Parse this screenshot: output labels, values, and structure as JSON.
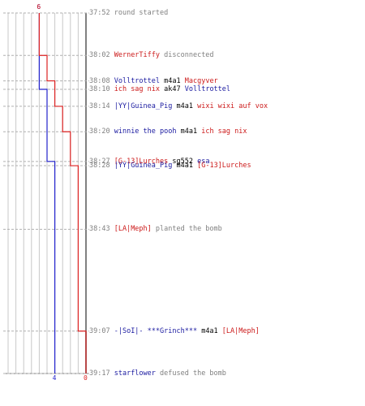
{
  "colors": {
    "blue": "#2222cc",
    "red": "#dd2222",
    "grid": "#c8c8c8",
    "gray": "#808080"
  },
  "counts": {
    "blue_start": "6",
    "red_start": "6",
    "blue_end": "4",
    "red_end": "0"
  },
  "events": [
    {
      "time": "37:52",
      "parts": [
        {
          "text": "round started",
          "color": "gray"
        }
      ]
    },
    {
      "time": "38:02",
      "parts": [
        {
          "text": "WernerTiffy",
          "color": "red"
        },
        {
          "text": " disconnected",
          "color": "gray"
        }
      ]
    },
    {
      "time": "38:08",
      "parts": [
        {
          "text": "Volltrottel",
          "color": "blue"
        },
        {
          "text": " m4a1 ",
          "color": "black"
        },
        {
          "text": "Macgyver",
          "color": "red"
        }
      ]
    },
    {
      "time": "38:10",
      "parts": [
        {
          "text": "ich sag nix",
          "color": "red"
        },
        {
          "text": " ak47 ",
          "color": "black"
        },
        {
          "text": "Volltrottel",
          "color": "blue"
        }
      ]
    },
    {
      "time": "38:14",
      "parts": [
        {
          "text": "|YY|Guinea_Pig",
          "color": "blue"
        },
        {
          "text": " m4a1 ",
          "color": "black"
        },
        {
          "text": "wixi wixi auf vox",
          "color": "red"
        }
      ]
    },
    {
      "time": "38:20",
      "parts": [
        {
          "text": "winnie the pooh",
          "color": "blue"
        },
        {
          "text": " m4a1 ",
          "color": "black"
        },
        {
          "text": "ich sag nix",
          "color": "red"
        }
      ]
    },
    {
      "time": "38:27",
      "parts": [
        {
          "text": "[G-13]Lurches",
          "color": "red"
        },
        {
          "text": " sg552 ",
          "color": "black"
        },
        {
          "text": "esa",
          "color": "blue"
        }
      ]
    },
    {
      "time": "38:28",
      "parts": [
        {
          "text": "|YY|Guinea_Pig",
          "color": "blue"
        },
        {
          "text": " m4a1 ",
          "color": "black"
        },
        {
          "text": "[G-13]Lurches",
          "color": "red"
        }
      ]
    },
    {
      "time": "38:43",
      "parts": [
        {
          "text": "[LA|Meph]",
          "color": "red"
        },
        {
          "text": " planted the bomb",
          "color": "gray"
        }
      ]
    },
    {
      "time": "39:07",
      "parts": [
        {
          "text": "-|SoI|- ***Grinch***",
          "color": "blue"
        },
        {
          "text": " m4a1 ",
          "color": "black"
        },
        {
          "text": "[LA|Meph]",
          "color": "red"
        }
      ]
    },
    {
      "time": "39:17",
      "parts": [
        {
          "text": "starflower",
          "color": "blue"
        },
        {
          "text": " defused the bomb",
          "color": "gray"
        }
      ]
    }
  ],
  "chart_data": {
    "type": "line",
    "x_unit": "round time (mm:ss)",
    "x": [
      "37:52",
      "38:02",
      "38:08",
      "38:10",
      "38:14",
      "38:20",
      "38:27",
      "38:28",
      "38:43",
      "39:07",
      "39:17"
    ],
    "ylim": [
      0,
      10
    ],
    "series": [
      {
        "color": "blue",
        "values": [
          6,
          6,
          6,
          5,
          5,
          5,
          4,
          4,
          4,
          4,
          4
        ]
      },
      {
        "color": "red",
        "values": [
          6,
          5,
          4,
          4,
          3,
          2,
          2,
          1,
          1,
          0,
          0
        ]
      }
    ]
  }
}
